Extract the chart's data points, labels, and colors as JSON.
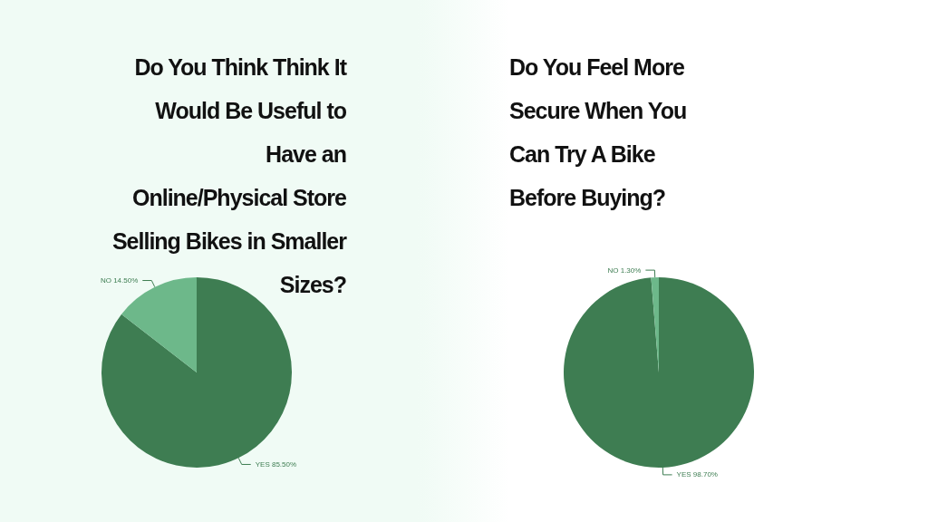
{
  "chart_data": [
    {
      "type": "pie",
      "title": "Do You Think Think It Would Be Useful to Have an Online/Physical Store Selling Bikes in Smaller Sizes?",
      "categories": [
        "YES",
        "NO"
      ],
      "values": [
        85.5,
        14.5
      ],
      "value_labels": [
        "85.50%",
        "14.50%"
      ],
      "colors": [
        "#3e7d52",
        "#6db88a"
      ]
    },
    {
      "type": "pie",
      "title": "Do You Feel More Secure When You Can Try A Bike Before Buying?",
      "categories": [
        "YES",
        "NO"
      ],
      "values": [
        98.7,
        1.3
      ],
      "value_labels": [
        "98.70%",
        "1.30%"
      ],
      "colors": [
        "#3e7d52",
        "#6db88a"
      ]
    }
  ]
}
